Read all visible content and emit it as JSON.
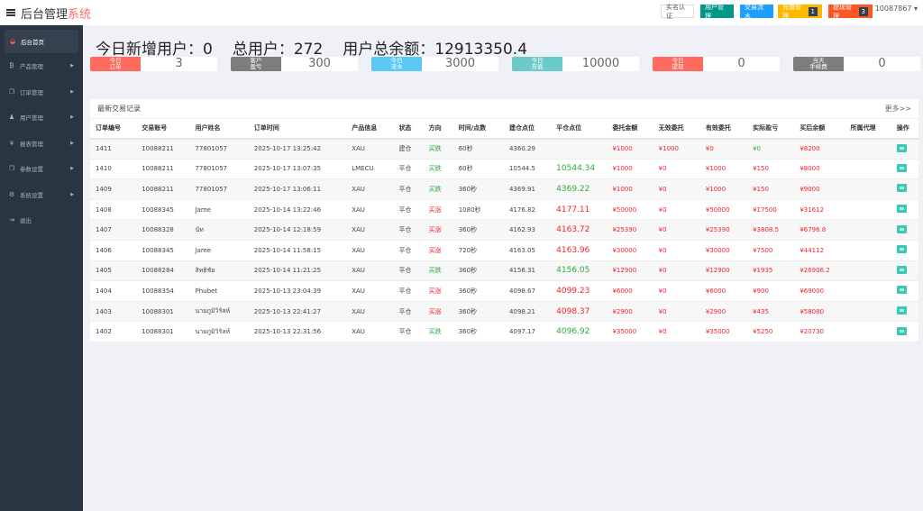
{
  "header": {
    "brand_main": "后台管理",
    "brand_accent": "系统",
    "buttons": [
      {
        "label": "实名认证",
        "color": "#ffffff",
        "badge": null
      },
      {
        "label": "用户管理",
        "color": "#009688",
        "badge": null
      },
      {
        "label": "交易流水",
        "color": "#1e9fff",
        "badge": null
      },
      {
        "label": "充值管理",
        "color": "#ffb800",
        "badge": "1"
      },
      {
        "label": "提现管理",
        "color": "#ff5722",
        "badge": "3"
      }
    ],
    "user": "10087867"
  },
  "sidebar": {
    "items": [
      {
        "label": "后台首页",
        "icon": "dashboard-icon"
      },
      {
        "label": "产品管理",
        "icon": "bitcoin-icon"
      },
      {
        "label": "订单管理",
        "icon": "copy-icon"
      },
      {
        "label": "用户管理",
        "icon": "user-icon"
      },
      {
        "label": "报表管理",
        "icon": "yen-icon"
      },
      {
        "label": "参数设置",
        "icon": "copy-icon"
      },
      {
        "label": "系统设置",
        "icon": "cogs-icon"
      },
      {
        "label": "退出",
        "icon": "sign-out-icon"
      }
    ]
  },
  "summary": {
    "new_users": "今日新增用户：0",
    "total_users": "总用户：272",
    "total_balance": "用户总余额：12913350.4"
  },
  "stats": [
    {
      "label1": "今日",
      "label2": "订单",
      "value": "3",
      "color": "#ff6b5f"
    },
    {
      "label1": "客户",
      "label2": "盈亏",
      "value": "300",
      "color": "#7d7d7d"
    },
    {
      "label1": "今日",
      "label2": "流水",
      "value": "3000",
      "color": "#5bc8f5"
    },
    {
      "label1": "今日",
      "label2": "充值",
      "value": "10000",
      "color": "#6ccac9"
    },
    {
      "label1": "今日",
      "label2": "提现",
      "value": "0",
      "color": "#ff6b5f"
    },
    {
      "label1": "当天",
      "label2": "手续费",
      "value": "0",
      "color": "#7d7d7d"
    }
  ],
  "table": {
    "title": "最新交易记录",
    "more": "更多>>",
    "columns": [
      "订单编号",
      "交易账号",
      "用户姓名",
      "订单时间",
      "产品信息",
      "状态",
      "方向",
      "时间/点数",
      "建仓点位",
      "平仓点位",
      "委托金额",
      "无效委托",
      "有效委托",
      "实际盈亏",
      "买后余额",
      "所属代理",
      "操作"
    ],
    "rows": [
      [
        "1411",
        "10088211",
        "77801057",
        "2025-10-17 13:25:42",
        "XAU",
        "建仓",
        "买跌",
        "60秒",
        "4360.29",
        "",
        "¥1000",
        "¥1000",
        "¥0",
        "¥0",
        "¥8200",
        ""
      ],
      [
        "1410",
        "10088211",
        "77801057",
        "2025-10-17 13:07:35",
        "LMECU",
        "平仓",
        "买跌",
        "60秒",
        "10544.5",
        "10544.34",
        "¥1000",
        "¥0",
        "¥1000",
        "¥150",
        "¥8000",
        ""
      ],
      [
        "1409",
        "10088211",
        "77801057",
        "2025-10-17 13:06:11",
        "XAU",
        "平仓",
        "买跌",
        "360秒",
        "4369.91",
        "4369.22",
        "¥1000",
        "¥0",
        "¥1000",
        "¥150",
        "¥9000",
        ""
      ],
      [
        "1408",
        "10088345",
        "Jame",
        "2025-10-14 13:22:46",
        "XAU",
        "平仓",
        "买涨",
        "1080秒",
        "4176.82",
        "4177.11",
        "¥50000",
        "¥0",
        "¥50000",
        "¥17500",
        "¥31612",
        ""
      ],
      [
        "1407",
        "10088328",
        "นัท",
        "2025-10-14 12:18:59",
        "XAU",
        "平仓",
        "买涨",
        "360秒",
        "4162.93",
        "4163.72",
        "¥25390",
        "¥0",
        "¥25390",
        "¥3808.5",
        "¥6796.8",
        ""
      ],
      [
        "1406",
        "10088345",
        "Jame",
        "2025-10-14 11:58:15",
        "XAU",
        "平仓",
        "买涨",
        "720秒",
        "4163.05",
        "4163.96",
        "¥30000",
        "¥0",
        "¥30000",
        "¥7500",
        "¥44112",
        ""
      ],
      [
        "1405",
        "10088284",
        "สิทธิชัย",
        "2025-10-14 11:21:25",
        "XAU",
        "平仓",
        "买跌",
        "360秒",
        "4156.31",
        "4156.05",
        "¥12900",
        "¥0",
        "¥12900",
        "¥1935",
        "¥26906.2",
        ""
      ],
      [
        "1404",
        "10088354",
        "Phubet",
        "2025-10-13 23:04:39",
        "XAU",
        "平仓",
        "买涨",
        "360秒",
        "4098.67",
        "4099.23",
        "¥6000",
        "¥0",
        "¥6000",
        "¥900",
        "¥69000",
        ""
      ],
      [
        "1403",
        "10088301",
        "นายภูมิวิรัลห์",
        "2025-10-13 22:41:27",
        "XAU",
        "平仓",
        "买涨",
        "360秒",
        "4098.21",
        "4098.37",
        "¥2900",
        "¥0",
        "¥2900",
        "¥435",
        "¥58080",
        ""
      ],
      [
        "1402",
        "10088301",
        "นายภูมิวิรัลห์",
        "2025-10-13 22:31:56",
        "XAU",
        "平仓",
        "买跌",
        "360秒",
        "4097.17",
        "4096.92",
        "¥35000",
        "¥0",
        "¥35000",
        "¥5250",
        "¥20730",
        ""
      ]
    ]
  }
}
